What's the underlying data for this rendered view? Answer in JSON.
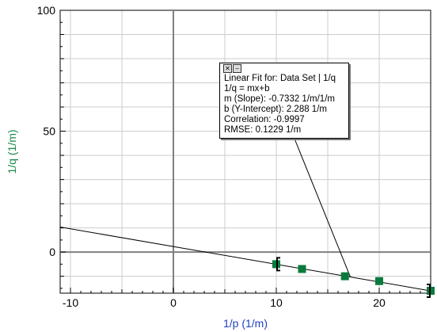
{
  "chart_data": {
    "type": "scatter",
    "xlabel": "1/p (1/m)",
    "ylabel": "1/q (1/m)",
    "xlim": [
      -11,
      25
    ],
    "ylim": [
      -17,
      100
    ],
    "x_ticks": [
      -10,
      0,
      10,
      20
    ],
    "y_ticks": [
      0,
      50,
      100
    ],
    "grid": true,
    "series": [
      {
        "values": [
          {
            "x": 10,
            "y": -5
          },
          {
            "x": 12.5,
            "y": -7
          },
          {
            "x": 16.67,
            "y": -10
          },
          {
            "x": 20,
            "y": -12
          },
          {
            "x": 25,
            "y": -16
          }
        ],
        "color": "#0a7a3c"
      }
    ],
    "fit": {
      "slope": -0.7332,
      "intercept": 2.288,
      "x_range": [
        -11,
        25
      ],
      "color": "#000000"
    },
    "annotation": {
      "lines": [
        "Linear Fit for: Data Set | 1/q",
        "1/q = mx+b",
        "m (Slope): -0.7332 1/m/1/m",
        "b (Y-Intercept): 2.288 1/m",
        "Correlation: -0.9997",
        "RMSE: 0.1229 1/m"
      ],
      "pointer_x": 17.2
    },
    "colors": {
      "ylabel": "#1a8a4a",
      "xlabel": "#1f3fbf",
      "grid": "#cccccc",
      "zero_axis": "#808080"
    }
  },
  "fit_box": {
    "close_icon": "close-icon",
    "minimize_icon": "minimize-icon"
  }
}
